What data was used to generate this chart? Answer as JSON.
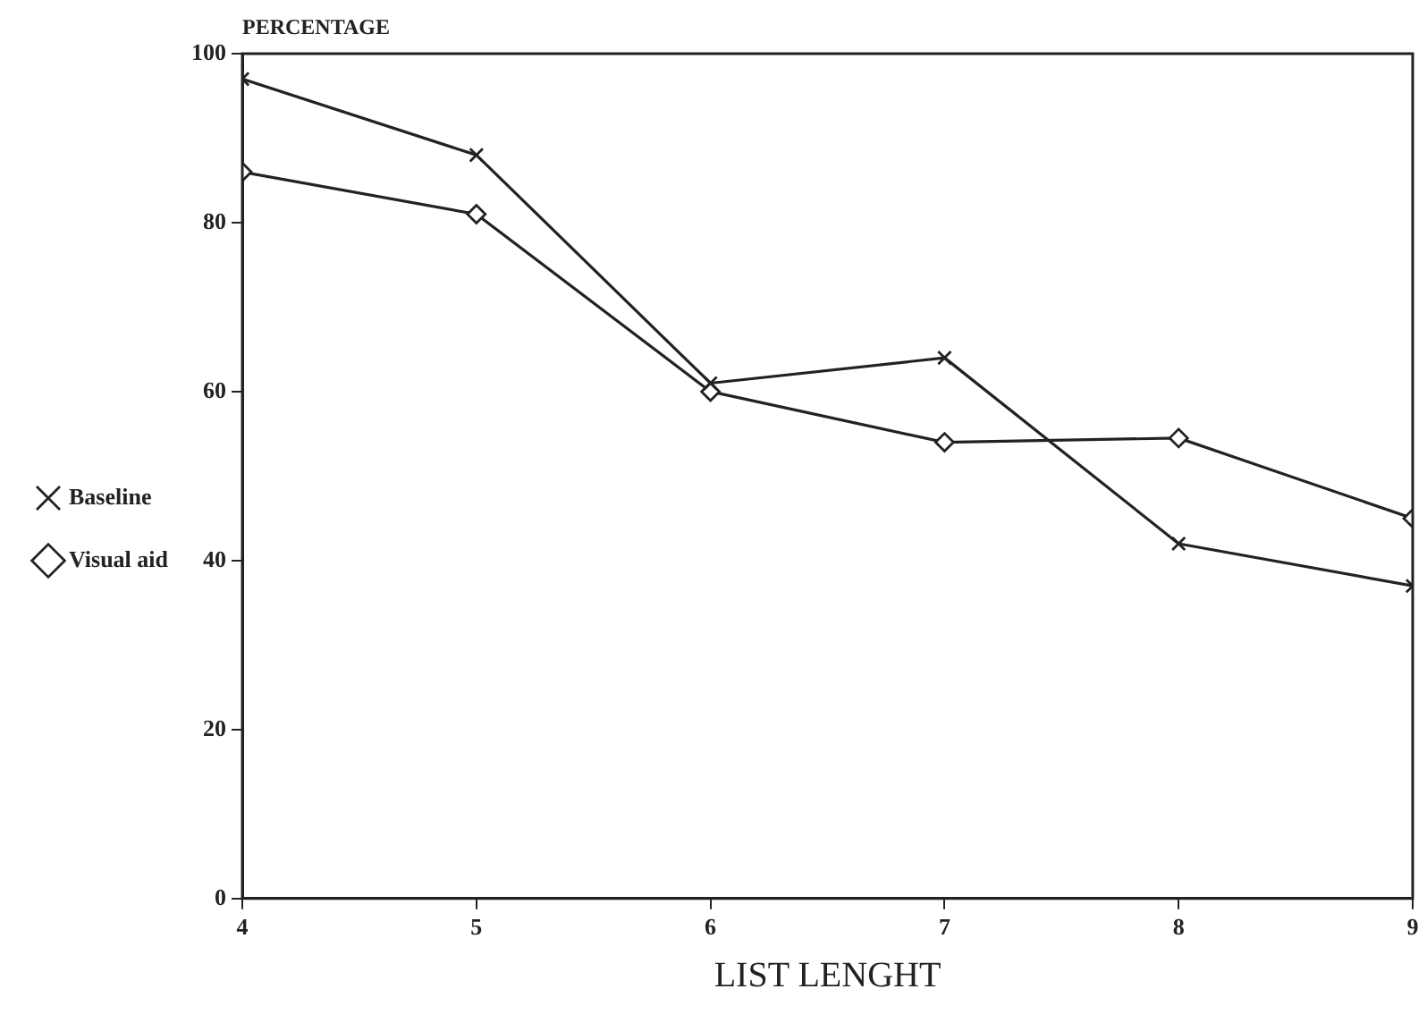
{
  "chart_data": {
    "type": "line",
    "xlabel": "LIST LENGHT",
    "ylabel": "PERCENTAGE",
    "x": [
      4,
      5,
      6,
      7,
      8,
      9
    ],
    "series": [
      {
        "name": "Visual aid",
        "color": "#222222",
        "marker": "diamond",
        "values": [
          86,
          81,
          60,
          54,
          54.5,
          45
        ]
      },
      {
        "name": "Baseline",
        "color": "#222222",
        "marker": "cross",
        "values": [
          97,
          88,
          61,
          64,
          42,
          37
        ]
      }
    ],
    "xlim": [
      4,
      9
    ],
    "xticks": [
      4,
      5,
      6,
      7,
      8,
      9
    ],
    "ylim": [
      0,
      100
    ],
    "yticks": [
      0,
      20,
      40,
      60,
      80,
      100
    ],
    "grid": false,
    "legend": "left",
    "line_style": "solid"
  }
}
